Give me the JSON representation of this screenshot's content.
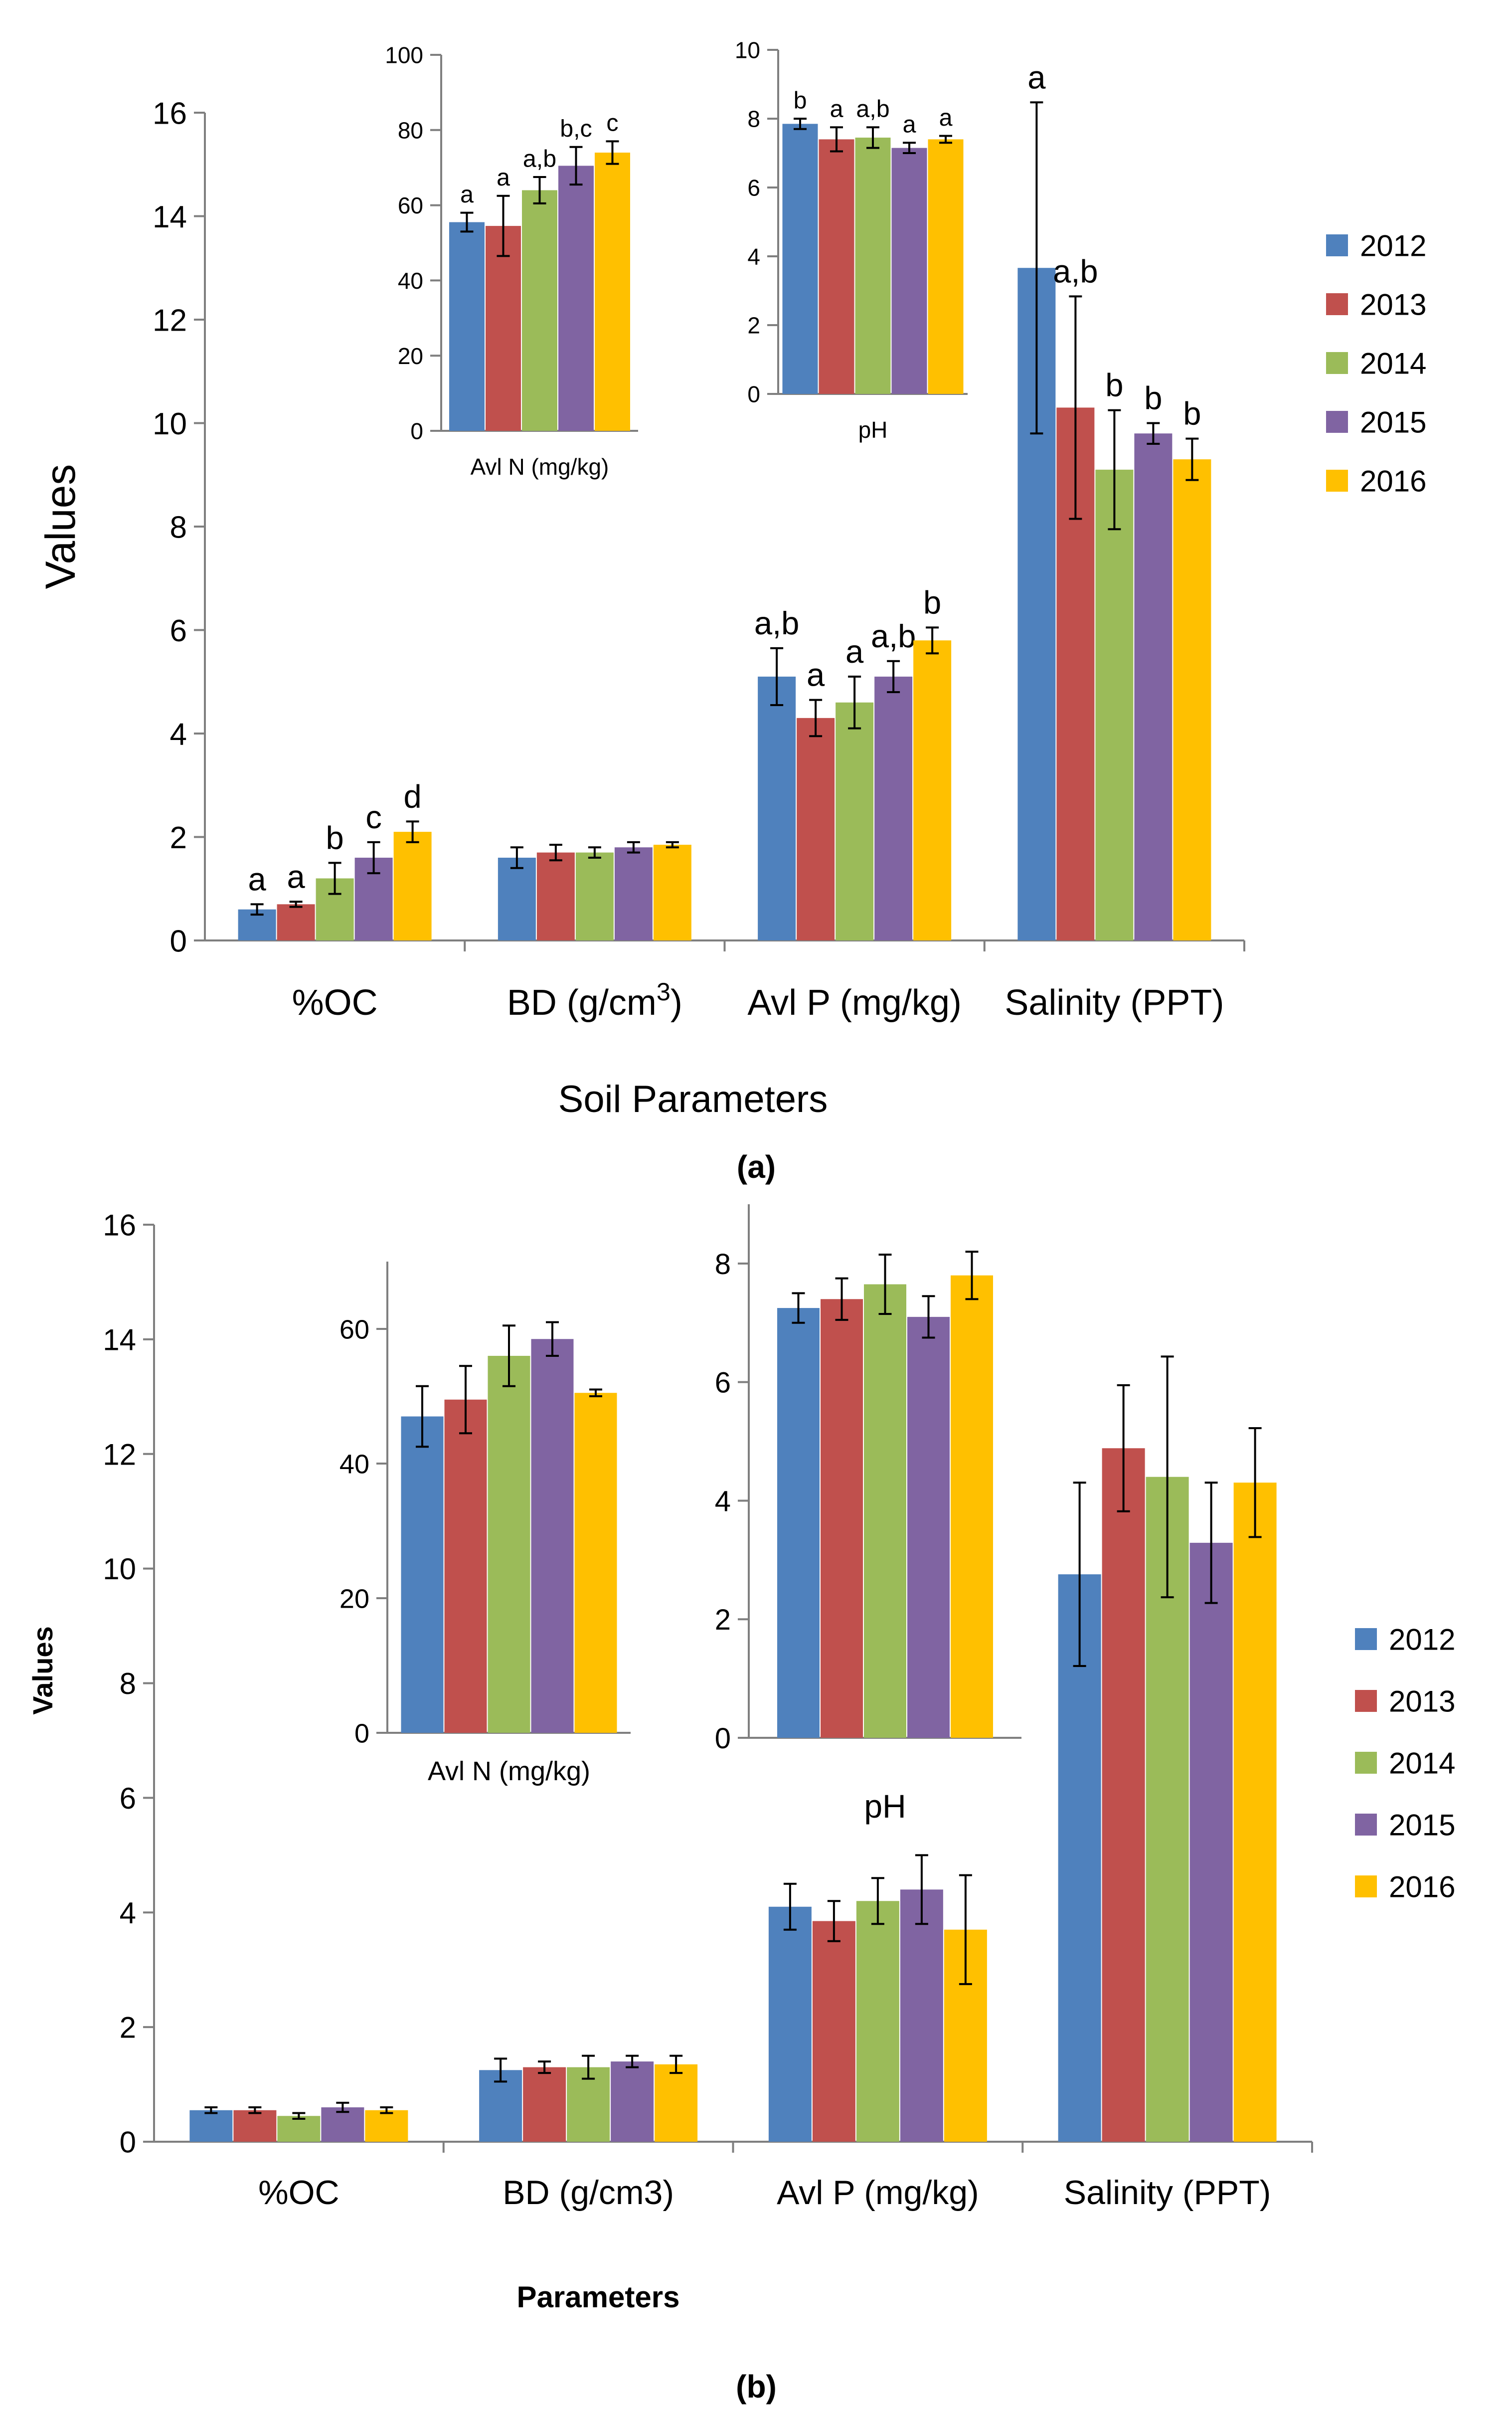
{
  "colors": {
    "2012": "#4F81BD",
    "2013": "#C0504D",
    "2014": "#9BBB59",
    "2015": "#8064A2",
    "2016": "#FFC000"
  },
  "chart_data": [
    {
      "id": "a-main",
      "type": "bar",
      "panel": "a",
      "categories": [
        "%OC",
        "BD (g/cm3)",
        "Avl P (mg/kg)",
        "Salinity (PPT)"
      ],
      "series": [
        {
          "name": "2012",
          "values": [
            0.6,
            1.6,
            5.1,
            13.0
          ],
          "err": [
            0.1,
            0.2,
            0.55,
            3.2
          ],
          "letters": [
            "a",
            "",
            "a,b",
            "a"
          ]
        },
        {
          "name": "2013",
          "values": [
            0.7,
            1.7,
            4.3,
            10.3
          ],
          "err": [
            0.05,
            0.15,
            0.35,
            2.15
          ],
          "letters": [
            "a",
            "",
            "a",
            "a,b"
          ]
        },
        {
          "name": "2014",
          "values": [
            1.2,
            1.7,
            4.6,
            9.1
          ],
          "err": [
            0.3,
            0.1,
            0.5,
            1.15
          ],
          "letters": [
            "b",
            "",
            "a",
            "b"
          ]
        },
        {
          "name": "2015",
          "values": [
            1.6,
            1.8,
            5.1,
            9.8
          ],
          "err": [
            0.3,
            0.1,
            0.3,
            0.2
          ],
          "letters": [
            "c",
            "",
            "a,b",
            "b"
          ]
        },
        {
          "name": "2016",
          "values": [
            2.1,
            1.85,
            5.8,
            9.3
          ],
          "err": [
            0.2,
            0.05,
            0.25,
            0.4
          ],
          "letters": [
            "d",
            "",
            "b",
            "b"
          ]
        }
      ],
      "xlabel": "Soil Parameters",
      "ylabel": "Values",
      "ylim": [
        0,
        16
      ],
      "yticks": [
        0,
        2,
        4,
        6,
        8,
        10,
        12,
        14,
        16
      ],
      "legend": "right"
    },
    {
      "id": "a-inset-n",
      "type": "bar",
      "panel": "a",
      "categories": [
        "Avl N (mg/kg)"
      ],
      "series": [
        {
          "name": "2012",
          "values": [
            55.5
          ],
          "err": [
            2.5
          ],
          "letters": [
            "a"
          ]
        },
        {
          "name": "2013",
          "values": [
            54.5
          ],
          "err": [
            8.0
          ],
          "letters": [
            "a"
          ]
        },
        {
          "name": "2014",
          "values": [
            64.0
          ],
          "err": [
            3.5
          ],
          "letters": [
            "a,b"
          ]
        },
        {
          "name": "2015",
          "values": [
            70.5
          ],
          "err": [
            5.0
          ],
          "letters": [
            "b,c"
          ]
        },
        {
          "name": "2016",
          "values": [
            74.0
          ],
          "err": [
            3.0
          ],
          "letters": [
            "c"
          ]
        }
      ],
      "xlabel": "Avl N (mg/kg)",
      "ylim": [
        0,
        100
      ],
      "yticks": [
        0,
        20,
        40,
        60,
        80,
        100
      ]
    },
    {
      "id": "a-inset-ph",
      "type": "bar",
      "panel": "a",
      "categories": [
        "pH"
      ],
      "series": [
        {
          "name": "2012",
          "values": [
            7.85
          ],
          "err": [
            0.15
          ],
          "letters": [
            "b"
          ]
        },
        {
          "name": "2013",
          "values": [
            7.4
          ],
          "err": [
            0.35
          ],
          "letters": [
            "a"
          ]
        },
        {
          "name": "2014",
          "values": [
            7.45
          ],
          "err": [
            0.3
          ],
          "letters": [
            "a,b"
          ]
        },
        {
          "name": "2015",
          "values": [
            7.15
          ],
          "err": [
            0.15
          ],
          "letters": [
            "a"
          ]
        },
        {
          "name": "2016",
          "values": [
            7.4
          ],
          "err": [
            0.1
          ],
          "letters": [
            "a"
          ]
        }
      ],
      "xlabel": "pH",
      "ylim": [
        0,
        10
      ],
      "yticks": [
        0,
        2,
        4,
        6,
        8,
        10
      ]
    },
    {
      "id": "b-main",
      "type": "bar",
      "panel": "b",
      "categories": [
        "%OC",
        "BD (g/cm3)",
        "Avl P (mg/kg)",
        "Salinity (PPT)"
      ],
      "series": [
        {
          "name": "2012",
          "values": [
            0.55,
            1.25,
            4.1,
            9.9
          ],
          "err": [
            0.05,
            0.2,
            0.4,
            1.6
          ]
        },
        {
          "name": "2013",
          "values": [
            0.55,
            1.3,
            3.85,
            12.1
          ],
          "err": [
            0.05,
            0.1,
            0.35,
            1.1
          ]
        },
        {
          "name": "2014",
          "values": [
            0.45,
            1.3,
            4.2,
            11.6
          ],
          "err": [
            0.05,
            0.2,
            0.4,
            2.1
          ]
        },
        {
          "name": "2015",
          "values": [
            0.6,
            1.4,
            4.4,
            10.45
          ],
          "err": [
            0.08,
            0.1,
            0.6,
            1.05
          ]
        },
        {
          "name": "2016",
          "values": [
            0.55,
            1.35,
            3.7,
            11.5
          ],
          "err": [
            0.05,
            0.15,
            0.95,
            0.95
          ]
        }
      ],
      "xlabel": "Parameters",
      "ylabel": "Values",
      "ylim": [
        0,
        16
      ],
      "yticks": [
        0,
        2,
        4,
        6,
        8,
        10,
        12,
        14,
        16
      ],
      "legend": "right"
    },
    {
      "id": "b-inset-n",
      "type": "bar",
      "panel": "b",
      "categories": [
        "Avl N (mg/kg)"
      ],
      "series": [
        {
          "name": "2012",
          "values": [
            47.0
          ],
          "err": [
            4.5
          ]
        },
        {
          "name": "2013",
          "values": [
            49.5
          ],
          "err": [
            5.0
          ]
        },
        {
          "name": "2014",
          "values": [
            56.0
          ],
          "err": [
            4.5
          ]
        },
        {
          "name": "2015",
          "values": [
            58.5
          ],
          "err": [
            2.5
          ]
        },
        {
          "name": "2016",
          "values": [
            50.5
          ],
          "err": [
            0.5
          ]
        }
      ],
      "xlabel": "Avl N (mg/kg)",
      "ylim": [
        0,
        70
      ],
      "yticks": [
        0,
        20,
        40,
        60
      ]
    },
    {
      "id": "b-inset-ph",
      "type": "bar",
      "panel": "b",
      "categories": [
        "pH"
      ],
      "series": [
        {
          "name": "2012",
          "values": [
            7.25
          ],
          "err": [
            0.25
          ]
        },
        {
          "name": "2013",
          "values": [
            7.4
          ],
          "err": [
            0.35
          ]
        },
        {
          "name": "2014",
          "values": [
            7.65
          ],
          "err": [
            0.5
          ]
        },
        {
          "name": "2015",
          "values": [
            7.1
          ],
          "err": [
            0.35
          ]
        },
        {
          "name": "2016",
          "values": [
            7.8
          ],
          "err": [
            0.4
          ]
        }
      ],
      "xlabel": "pH",
      "ylim": [
        0,
        9
      ],
      "yticks": [
        0,
        2,
        4,
        6,
        8
      ]
    }
  ],
  "captions": {
    "a": "(a)",
    "b": "(b)"
  }
}
